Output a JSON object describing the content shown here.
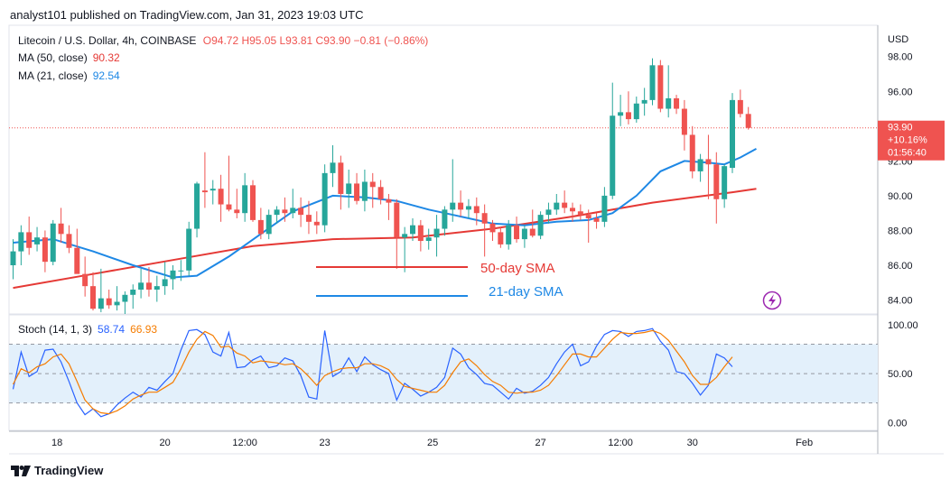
{
  "header": {
    "publisher_text": "analyst101 published on TradingView.com, Jan 31, 2023 19:03 UTC"
  },
  "legend": {
    "symbol": "Litecoin / U.S. Dollar, 4h, COINBASE",
    "ohlc": "O94.72 H95.05 L93.81 C93.90 −0.81 (−0.86%)",
    "ma50_label": "MA (50, close)",
    "ma50_value": "90.32",
    "ma21_label": "MA (21, close)",
    "ma21_value": "92.54",
    "stoch_label": "Stoch (14, 1, 3)",
    "stoch_k": "58.74",
    "stoch_d": "66.93"
  },
  "price_axis": {
    "currency": "USD",
    "ticks": [
      "98.00",
      "96.00",
      "94.00",
      "92.00",
      "90.00",
      "88.00",
      "86.00",
      "84.00"
    ],
    "current": {
      "price": "93.90",
      "change": "+10.16%",
      "countdown": "01:56:40"
    }
  },
  "stoch_axis": {
    "ticks": [
      "100.00",
      "50.00",
      "0.00"
    ]
  },
  "time_axis": {
    "ticks": [
      "18",
      "20",
      "12:00",
      "23",
      "25",
      "27",
      "12:00",
      "30",
      "Feb"
    ]
  },
  "annotations": {
    "sma50": "50-day SMA",
    "sma21": "21-day SMA"
  },
  "footer": {
    "brand": "TradingView"
  },
  "colors": {
    "up": "#26a69a",
    "down": "#ef5350",
    "ma50": "#e53935",
    "ma21": "#1e88e5",
    "stoch_k": "#2962ff",
    "stoch_d": "#f57c00",
    "stoch_band": "#e3f0fb"
  },
  "chart_data": [
    {
      "type": "candlestick",
      "title": "Litecoin / U.S. Dollar, 4h, COINBASE",
      "ylim": [
        83.2,
        99.8
      ],
      "series": [
        {
          "name": "candles",
          "ohlc": [
            [
              86.0,
              87.5,
              85.2,
              86.8
            ],
            [
              86.8,
              88.3,
              86.0,
              87.9
            ],
            [
              87.9,
              88.8,
              86.6,
              87.0
            ],
            [
              87.2,
              88.2,
              86.8,
              87.6
            ],
            [
              87.6,
              88.0,
              85.6,
              86.2
            ],
            [
              86.2,
              88.6,
              86.0,
              88.4
            ],
            [
              88.4,
              89.3,
              87.3,
              87.8
            ],
            [
              87.8,
              88.3,
              86.7,
              87.0
            ],
            [
              87.0,
              88.1,
              85.6,
              85.5
            ],
            [
              85.5,
              86.5,
              84.2,
              84.8
            ],
            [
              84.8,
              85.6,
              83.4,
              83.5
            ],
            [
              83.5,
              85.8,
              83.3,
              84.1
            ],
            [
              84.1,
              84.6,
              83.5,
              83.7
            ],
            [
              83.7,
              84.8,
              83.4,
              83.9
            ],
            [
              83.9,
              84.5,
              83.2,
              84.3
            ],
            [
              84.3,
              84.9,
              83.5,
              84.6
            ],
            [
              84.6,
              85.8,
              84.1,
              85.0
            ],
            [
              85.0,
              85.9,
              84.2,
              84.6
            ],
            [
              84.6,
              85.4,
              83.9,
              84.8
            ],
            [
              84.8,
              86.2,
              84.3,
              85.2
            ],
            [
              85.2,
              86.0,
              84.6,
              85.7
            ],
            [
              85.7,
              86.3,
              85.1,
              85.7
            ],
            [
              85.7,
              88.5,
              85.4,
              88.1
            ],
            [
              88.1,
              90.8,
              87.6,
              90.7
            ],
            [
              90.3,
              92.5,
              89.3,
              90.2
            ],
            [
              90.3,
              90.9,
              89.5,
              90.4
            ],
            [
              90.4,
              91.2,
              88.5,
              89.5
            ],
            [
              89.5,
              92.3,
              89.1,
              89.2
            ],
            [
              89.2,
              90.4,
              88.7,
              89.0
            ],
            [
              89.0,
              91.3,
              88.5,
              90.6
            ],
            [
              90.6,
              90.9,
              88.5,
              88.6
            ],
            [
              88.6,
              89.3,
              87.5,
              87.8
            ],
            [
              87.8,
              89.2,
              87.5,
              88.9
            ],
            [
              88.9,
              89.4,
              88.4,
              89.2
            ],
            [
              89.2,
              89.9,
              88.5,
              89.0
            ],
            [
              89.0,
              90.4,
              88.7,
              89.3
            ],
            [
              89.3,
              89.9,
              88.2,
              88.9
            ],
            [
              88.9,
              89.7,
              87.8,
              88.5
            ],
            [
              88.5,
              89.1,
              87.8,
              88.3
            ],
            [
              88.3,
              91.8,
              87.9,
              91.3
            ],
            [
              91.3,
              92.9,
              90.5,
              91.9
            ],
            [
              91.9,
              92.3,
              89.2,
              90.1
            ],
            [
              90.1,
              91.5,
              89.3,
              90.7
            ],
            [
              90.7,
              91.3,
              89.5,
              89.7
            ],
            [
              89.7,
              91.5,
              89.1,
              90.8
            ],
            [
              90.8,
              91.3,
              89.3,
              90.5
            ],
            [
              90.5,
              90.9,
              89.5,
              89.8
            ],
            [
              89.8,
              90.1,
              88.6,
              89.6
            ],
            [
              89.6,
              89.8,
              85.8,
              87.6
            ],
            [
              87.6,
              88.2,
              85.6,
              87.8
            ],
            [
              87.8,
              88.7,
              87.4,
              88.3
            ],
            [
              88.3,
              88.6,
              86.8,
              87.4
            ],
            [
              87.4,
              88.1,
              86.9,
              87.6
            ],
            [
              87.6,
              88.9,
              86.5,
              88.1
            ],
            [
              88.1,
              89.4,
              87.7,
              89.2
            ],
            [
              89.2,
              92.1,
              88.5,
              89.6
            ],
            [
              89.6,
              90.3,
              88.8,
              89.2
            ],
            [
              89.2,
              89.8,
              88.7,
              89.4
            ],
            [
              89.4,
              89.9,
              88.3,
              89.0
            ],
            [
              89.0,
              89.5,
              86.5,
              88.4
            ],
            [
              88.4,
              88.6,
              87.4,
              87.9
            ],
            [
              87.9,
              88.2,
              87.0,
              87.2
            ],
            [
              87.2,
              88.6,
              86.9,
              88.3
            ],
            [
              88.3,
              88.8,
              87.3,
              87.5
            ],
            [
              87.5,
              88.3,
              87.0,
              88.1
            ],
            [
              88.1,
              89.2,
              87.6,
              87.7
            ],
            [
              87.7,
              89.1,
              87.5,
              88.9
            ],
            [
              88.9,
              89.6,
              88.4,
              89.2
            ],
            [
              89.2,
              90.1,
              88.9,
              89.6
            ],
            [
              89.6,
              90.3,
              89.0,
              89.3
            ],
            [
              89.3,
              89.6,
              88.5,
              89.1
            ],
            [
              89.1,
              89.5,
              88.6,
              88.9
            ],
            [
              88.9,
              89.2,
              87.3,
              88.7
            ],
            [
              88.7,
              89.0,
              88.1,
              88.5
            ],
            [
              88.5,
              90.5,
              88.2,
              90.0
            ],
            [
              90.0,
              96.5,
              89.8,
              94.6
            ],
            [
              94.6,
              95.8,
              94.0,
              94.8
            ],
            [
              94.8,
              96.0,
              94.1,
              94.4
            ],
            [
              94.4,
              95.7,
              94.2,
              95.3
            ],
            [
              95.3,
              96.2,
              94.6,
              95.5
            ],
            [
              95.5,
              97.9,
              95.2,
              97.5
            ],
            [
              97.5,
              97.8,
              94.8,
              95.0
            ],
            [
              95.0,
              97.5,
              94.5,
              95.6
            ],
            [
              95.6,
              95.8,
              94.7,
              95.0
            ],
            [
              95.0,
              95.5,
              92.6,
              93.5
            ],
            [
              93.5,
              94.0,
              91.0,
              91.4
            ],
            [
              91.4,
              92.4,
              90.8,
              92.1
            ],
            [
              92.1,
              93.5,
              89.8,
              91.8
            ],
            [
              91.8,
              92.5,
              88.4,
              89.8
            ],
            [
              89.8,
              91.8,
              89.3,
              91.7
            ],
            [
              91.6,
              95.9,
              91.3,
              95.5
            ],
            [
              95.5,
              96.1,
              94.5,
              94.7
            ],
            [
              94.7,
              95.1,
              93.8,
              93.9
            ]
          ]
        },
        {
          "name": "MA (50, close)",
          "values": [
            [
              0,
              84.7
            ],
            [
              10,
              85.5
            ],
            [
              20,
              86.3
            ],
            [
              30,
              87.1
            ],
            [
              40,
              87.5
            ],
            [
              50,
              87.6
            ],
            [
              60,
              88.1
            ],
            [
              70,
              88.8
            ],
            [
              80,
              89.6
            ],
            [
              85,
              89.9
            ],
            [
              90,
              90.2
            ],
            [
              93,
              90.4
            ]
          ]
        },
        {
          "name": "MA (21, close)",
          "values": [
            [
              0,
              87.3
            ],
            [
              5,
              87.5
            ],
            [
              10,
              86.8
            ],
            [
              15,
              86.0
            ],
            [
              20,
              85.3
            ],
            [
              23,
              85.4
            ],
            [
              27,
              86.5
            ],
            [
              31,
              87.8
            ],
            [
              35,
              89.1
            ],
            [
              40,
              90.0
            ],
            [
              44,
              89.9
            ],
            [
              48,
              89.7
            ],
            [
              52,
              89.2
            ],
            [
              56,
              88.8
            ],
            [
              60,
              88.4
            ],
            [
              64,
              88.3
            ],
            [
              68,
              88.5
            ],
            [
              72,
              88.6
            ],
            [
              75,
              89.0
            ],
            [
              78,
              90.0
            ],
            [
              81,
              91.4
            ],
            [
              84,
              92.0
            ],
            [
              87,
              91.9
            ],
            [
              89,
              91.8
            ],
            [
              91,
              92.2
            ],
            [
              93,
              92.7
            ]
          ]
        }
      ]
    },
    {
      "type": "line",
      "title": "Stoch (14, 1, 3)",
      "ylim": [
        0,
        100
      ],
      "series": [
        {
          "name": "%K",
          "values": [
            34,
            72,
            47,
            52,
            74,
            75,
            62,
            42,
            20,
            8,
            14,
            6,
            9,
            18,
            25,
            31,
            26,
            36,
            33,
            42,
            50,
            74,
            94,
            95,
            90,
            72,
            68,
            92,
            56,
            57,
            64,
            68,
            56,
            58,
            66,
            63,
            48,
            26,
            24,
            94,
            47,
            52,
            66,
            52,
            67,
            59,
            54,
            50,
            23,
            40,
            34,
            27,
            31,
            36,
            46,
            76,
            70,
            56,
            49,
            40,
            38,
            31,
            24,
            35,
            30,
            32,
            38,
            46,
            60,
            72,
            80,
            58,
            62,
            78,
            90,
            94,
            93,
            88,
            93,
            94,
            96,
            83,
            74,
            52,
            50,
            40,
            28,
            38,
            70,
            66,
            57
          ]
        },
        {
          "name": "%D",
          "values": [
            39,
            55,
            51,
            57,
            60,
            67,
            70,
            60,
            42,
            23,
            14,
            10,
            9,
            12,
            17,
            24,
            28,
            31,
            31,
            36,
            41,
            55,
            72,
            85,
            93,
            89,
            77,
            78,
            71,
            68,
            61,
            63,
            62,
            61,
            59,
            60,
            55,
            47,
            38,
            48,
            52,
            55,
            56,
            56,
            60,
            60,
            58,
            54,
            44,
            37,
            35,
            33,
            31,
            31,
            38,
            51,
            62,
            65,
            58,
            49,
            42,
            38,
            31,
            30,
            31,
            31,
            33,
            38,
            48,
            59,
            70,
            70,
            67,
            67,
            76,
            85,
            92,
            91,
            91,
            92,
            94,
            91,
            84,
            73,
            62,
            48,
            39,
            39,
            46,
            57,
            67
          ]
        }
      ]
    }
  ]
}
